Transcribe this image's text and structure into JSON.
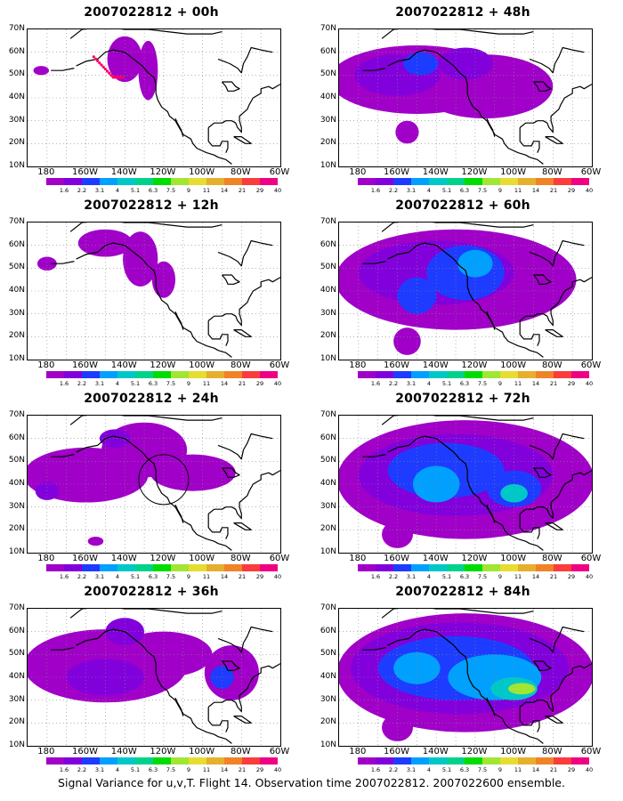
{
  "chart_data": {
    "type": "heatmap",
    "panels": [
      {
        "title": "2007022812 + 00h",
        "col": 0,
        "row": 0,
        "level": 0
      },
      {
        "title": "2007022812 + 12h",
        "col": 0,
        "row": 1,
        "level": 1
      },
      {
        "title": "2007022812 + 24h",
        "col": 0,
        "row": 2,
        "level": 2
      },
      {
        "title": "2007022812 + 36h",
        "col": 0,
        "row": 3,
        "level": 3
      },
      {
        "title": "2007022812 + 48h",
        "col": 1,
        "row": 0,
        "level": 4
      },
      {
        "title": "2007022812 + 60h",
        "col": 1,
        "row": 1,
        "level": 5
      },
      {
        "title": "2007022812 + 72h",
        "col": 1,
        "row": 2,
        "level": 6
      },
      {
        "title": "2007022812 + 84h",
        "col": 1,
        "row": 3,
        "level": 7
      }
    ],
    "lat_ticks": [
      "70N",
      "60N",
      "50N",
      "40N",
      "30N",
      "20N",
      "10N"
    ],
    "lon_ticks": [
      "180",
      "160W",
      "140W",
      "120W",
      "100W",
      "80W",
      "60W"
    ],
    "colorbar_labels": [
      "1.6",
      "2.2",
      "3.1",
      "4",
      "5.1",
      "6.3",
      "7.5",
      "9",
      "11",
      "14",
      "21",
      "29",
      "40"
    ],
    "colorbar_colors": [
      "#a000c8",
      "#8200dc",
      "#1e3cff",
      "#00a0ff",
      "#00c8c8",
      "#00d28c",
      "#00dc00",
      "#a0e632",
      "#e6dc32",
      "#e6af2d",
      "#f08228",
      "#fa3c3c",
      "#f00082"
    ],
    "lat_range": [
      10,
      70
    ],
    "lon_range": [
      -190,
      -60
    ],
    "grid": true,
    "footer": "Signal Variance for u,v,T. Flight 14. Observation time 2007022812. 2007022600 ensemble."
  }
}
